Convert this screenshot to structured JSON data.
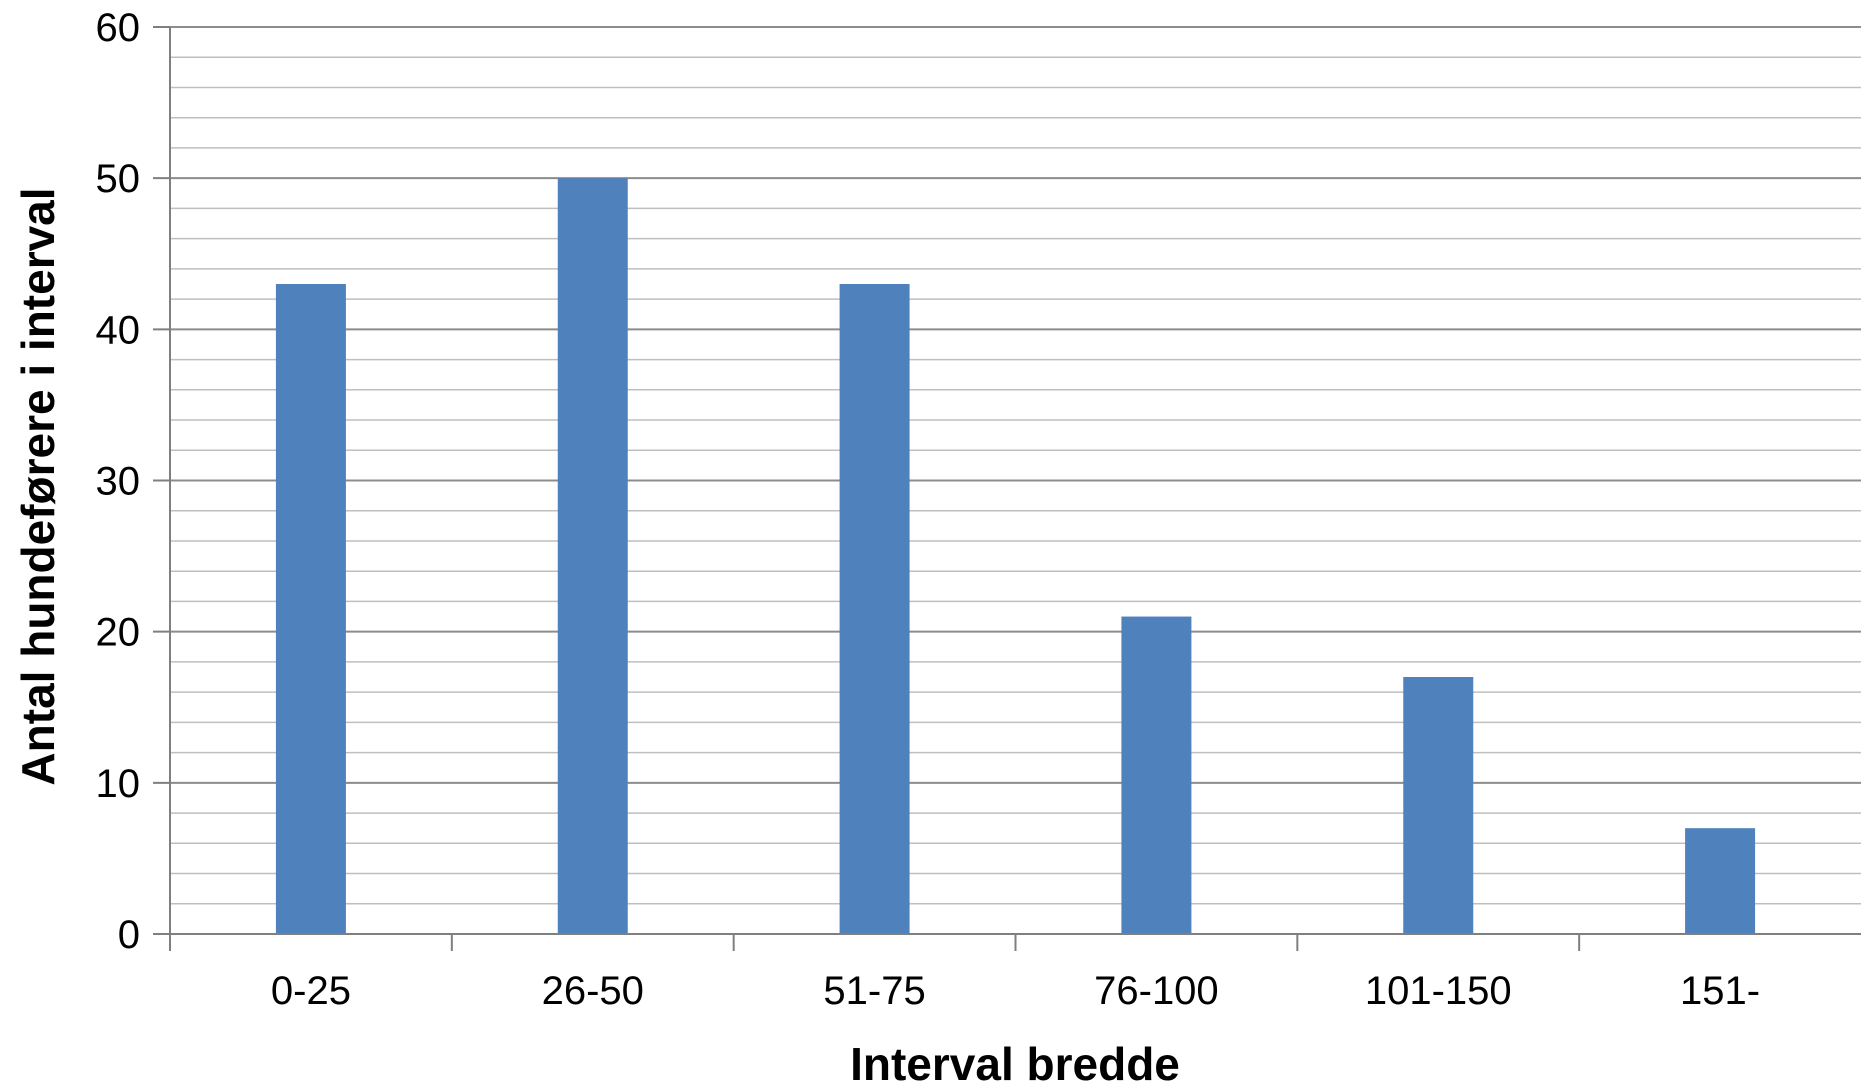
{
  "chart_data": {
    "type": "bar",
    "title": "",
    "xlabel": "Interval bredde",
    "ylabel": "Antal hundeførere i interval",
    "categories": [
      "0-25",
      "26-50",
      "51-75",
      "76-100",
      "101-150",
      "151-"
    ],
    "series": [
      {
        "values": [
          43,
          50,
          43,
          21,
          17,
          7
        ],
        "color": "#4F81BD"
      }
    ],
    "ylim": [
      0,
      60
    ],
    "major_ticks": [
      0,
      10,
      20,
      30,
      40,
      50,
      60
    ],
    "minor_tick_step": 2,
    "grid": true,
    "legend": "none",
    "colors": {
      "bar": "#4F81BD",
      "major_grid": "#8C8C8C",
      "minor_grid": "#BFBFBF",
      "axis": "#7F7F7F"
    }
  }
}
